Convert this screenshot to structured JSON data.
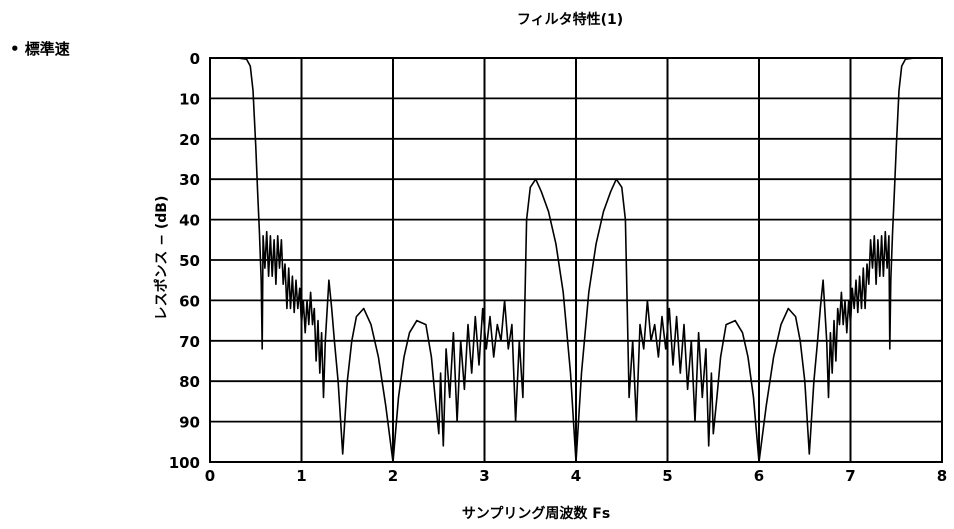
{
  "bullet_label": "• 標準速",
  "chart_data": {
    "type": "line",
    "title": "フィルタ特性(1)",
    "xlabel": "サンプリング周波数 Fs",
    "ylabel": "レスポンス − (dB)",
    "xlim": [
      0,
      8
    ],
    "ylim": [
      0,
      100
    ],
    "y_inverted": true,
    "x_ticks": [
      "0",
      "1",
      "2",
      "3",
      "4",
      "5",
      "6",
      "7",
      "8"
    ],
    "y_ticks": [
      "0",
      "10",
      "20",
      "30",
      "40",
      "50",
      "60",
      "70",
      "80",
      "90",
      "100"
    ],
    "grid": true,
    "series": [
      {
        "color": "#000000",
        "points": [
          [
            0.1,
            0
          ],
          [
            0.2,
            0
          ],
          [
            0.3,
            0
          ],
          [
            0.4,
            0.3
          ],
          [
            0.44,
            2
          ],
          [
            0.47,
            8
          ],
          [
            0.5,
            22
          ],
          [
            0.52,
            33
          ],
          [
            0.54,
            43
          ],
          [
            0.56,
            55
          ],
          [
            0.57,
            72
          ],
          [
            0.58,
            44
          ],
          [
            0.6,
            52
          ],
          [
            0.62,
            43
          ],
          [
            0.64,
            54
          ],
          [
            0.66,
            44
          ],
          [
            0.68,
            54
          ],
          [
            0.7,
            45
          ],
          [
            0.72,
            56
          ],
          [
            0.74,
            44
          ],
          [
            0.76,
            52
          ],
          [
            0.78,
            45
          ],
          [
            0.8,
            56
          ],
          [
            0.82,
            51
          ],
          [
            0.84,
            62
          ],
          [
            0.86,
            52
          ],
          [
            0.88,
            62
          ],
          [
            0.9,
            54
          ],
          [
            0.92,
            63
          ],
          [
            0.94,
            55
          ],
          [
            0.96,
            62
          ],
          [
            0.98,
            57
          ],
          [
            1.0,
            66
          ],
          [
            1.02,
            60
          ],
          [
            1.04,
            68
          ],
          [
            1.06,
            60
          ],
          [
            1.08,
            66
          ],
          [
            1.1,
            58
          ],
          [
            1.12,
            66
          ],
          [
            1.14,
            62
          ],
          [
            1.16,
            75
          ],
          [
            1.18,
            65
          ],
          [
            1.2,
            78
          ],
          [
            1.22,
            68
          ],
          [
            1.24,
            84
          ],
          [
            1.26,
            70
          ],
          [
            1.3,
            55
          ],
          [
            1.33,
            62
          ],
          [
            1.36,
            70
          ],
          [
            1.4,
            80
          ],
          [
            1.45,
            98
          ],
          [
            1.5,
            80
          ],
          [
            1.55,
            70
          ],
          [
            1.6,
            64
          ],
          [
            1.68,
            62
          ],
          [
            1.76,
            66
          ],
          [
            1.84,
            74
          ],
          [
            1.92,
            86
          ],
          [
            2.0,
            100
          ],
          [
            2.06,
            84
          ],
          [
            2.12,
            74
          ],
          [
            2.18,
            68
          ],
          [
            2.26,
            65
          ],
          [
            2.36,
            66
          ],
          [
            2.42,
            74
          ],
          [
            2.46,
            84
          ],
          [
            2.5,
            93
          ],
          [
            2.52,
            78
          ],
          [
            2.55,
            96
          ],
          [
            2.58,
            72
          ],
          [
            2.62,
            84
          ],
          [
            2.66,
            68
          ],
          [
            2.7,
            90
          ],
          [
            2.74,
            70
          ],
          [
            2.78,
            82
          ],
          [
            2.82,
            66
          ],
          [
            2.86,
            78
          ],
          [
            2.9,
            64
          ],
          [
            2.94,
            76
          ],
          [
            2.98,
            62
          ],
          [
            3.02,
            72
          ],
          [
            3.06,
            64
          ],
          [
            3.1,
            74
          ],
          [
            3.14,
            66
          ],
          [
            3.18,
            70
          ],
          [
            3.22,
            60
          ],
          [
            3.26,
            72
          ],
          [
            3.3,
            66
          ],
          [
            3.34,
            90
          ],
          [
            3.38,
            70
          ],
          [
            3.42,
            84
          ],
          [
            3.46,
            40
          ],
          [
            3.5,
            32
          ],
          [
            3.56,
            30
          ],
          [
            3.62,
            33
          ],
          [
            3.7,
            38
          ],
          [
            3.78,
            46
          ],
          [
            3.86,
            58
          ],
          [
            3.94,
            78
          ],
          [
            4.0,
            100
          ],
          [
            4.06,
            78
          ],
          [
            4.14,
            58
          ],
          [
            4.22,
            46
          ],
          [
            4.3,
            38
          ],
          [
            4.38,
            33
          ],
          [
            4.44,
            30
          ],
          [
            4.5,
            32
          ],
          [
            4.54,
            40
          ],
          [
            4.58,
            84
          ],
          [
            4.62,
            70
          ],
          [
            4.66,
            90
          ],
          [
            4.7,
            66
          ],
          [
            4.74,
            72
          ],
          [
            4.78,
            60
          ],
          [
            4.82,
            70
          ],
          [
            4.86,
            66
          ],
          [
            4.9,
            74
          ],
          [
            4.94,
            64
          ],
          [
            4.98,
            72
          ],
          [
            5.02,
            62
          ],
          [
            5.06,
            76
          ],
          [
            5.1,
            64
          ],
          [
            5.14,
            78
          ],
          [
            5.18,
            66
          ],
          [
            5.22,
            82
          ],
          [
            5.26,
            70
          ],
          [
            5.3,
            90
          ],
          [
            5.34,
            68
          ],
          [
            5.38,
            84
          ],
          [
            5.42,
            72
          ],
          [
            5.45,
            96
          ],
          [
            5.48,
            78
          ],
          [
            5.5,
            93
          ],
          [
            5.54,
            84
          ],
          [
            5.58,
            74
          ],
          [
            5.64,
            66
          ],
          [
            5.74,
            65
          ],
          [
            5.82,
            68
          ],
          [
            5.88,
            74
          ],
          [
            5.94,
            84
          ],
          [
            6.0,
            100
          ],
          [
            6.08,
            86
          ],
          [
            6.16,
            74
          ],
          [
            6.24,
            66
          ],
          [
            6.32,
            62
          ],
          [
            6.4,
            64
          ],
          [
            6.45,
            70
          ],
          [
            6.5,
            80
          ],
          [
            6.55,
            98
          ],
          [
            6.6,
            80
          ],
          [
            6.64,
            70
          ],
          [
            6.67,
            62
          ],
          [
            6.7,
            55
          ],
          [
            6.74,
            70
          ],
          [
            6.76,
            84
          ],
          [
            6.78,
            68
          ],
          [
            6.8,
            78
          ],
          [
            6.82,
            65
          ],
          [
            6.84,
            75
          ],
          [
            6.86,
            62
          ],
          [
            6.88,
            66
          ],
          [
            6.9,
            58
          ],
          [
            6.92,
            66
          ],
          [
            6.94,
            60
          ],
          [
            6.96,
            68
          ],
          [
            6.98,
            60
          ],
          [
            7.0,
            66
          ],
          [
            7.02,
            57
          ],
          [
            7.04,
            62
          ],
          [
            7.06,
            55
          ],
          [
            7.08,
            63
          ],
          [
            7.1,
            54
          ],
          [
            7.12,
            62
          ],
          [
            7.14,
            52
          ],
          [
            7.16,
            62
          ],
          [
            7.18,
            51
          ],
          [
            7.2,
            56
          ],
          [
            7.22,
            45
          ],
          [
            7.24,
            52
          ],
          [
            7.26,
            44
          ],
          [
            7.28,
            56
          ],
          [
            7.3,
            45
          ],
          [
            7.32,
            54
          ],
          [
            7.34,
            44
          ],
          [
            7.36,
            54
          ],
          [
            7.38,
            43
          ],
          [
            7.4,
            52
          ],
          [
            7.42,
            44
          ],
          [
            7.43,
            72
          ],
          [
            7.44,
            55
          ],
          [
            7.46,
            43
          ],
          [
            7.48,
            33
          ],
          [
            7.5,
            22
          ],
          [
            7.53,
            8
          ],
          [
            7.56,
            2
          ],
          [
            7.6,
            0.3
          ],
          [
            7.7,
            0
          ],
          [
            7.8,
            0
          ],
          [
            7.9,
            0
          ]
        ]
      }
    ]
  }
}
